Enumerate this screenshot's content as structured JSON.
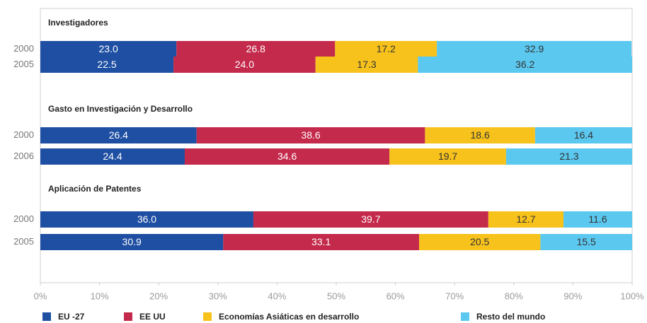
{
  "chart_data": {
    "type": "bar",
    "orientation": "horizontal",
    "stacked": true,
    "series": [
      {
        "name": "EU -27",
        "color": "#1f4fa3",
        "label_color": "#ffffff"
      },
      {
        "name": "EE UU",
        "color": "#c42a4b",
        "label_color": "#ffffff"
      },
      {
        "name": "Economías  Asiáticas en desarrollo",
        "color": "#f7c21c",
        "label_color": "#333333"
      },
      {
        "name": "Resto del mundo",
        "color": "#5bc8f0",
        "label_color": "#333333"
      }
    ],
    "groups": [
      {
        "title": "Investigadores",
        "categories": [
          "2000",
          "2005"
        ],
        "values": [
          [
            23.0,
            26.8,
            17.2,
            32.9
          ],
          [
            22.5,
            24.0,
            17.3,
            36.2
          ]
        ],
        "value_labels": [
          [
            "23.0",
            "26.8",
            "17.2",
            "32.9"
          ],
          [
            "22.5",
            "24.0",
            "17.3",
            "36.2"
          ]
        ]
      },
      {
        "title": "Gasto en Investigación y Desarrollo",
        "categories": [
          "2000",
          "2006"
        ],
        "values": [
          [
            26.4,
            38.6,
            18.6,
            16.4
          ],
          [
            24.4,
            34.6,
            19.7,
            21.3
          ]
        ],
        "value_labels": [
          [
            "26.4",
            "38.6",
            "18.6",
            "16.4"
          ],
          [
            "24.4",
            "34.6",
            "19.7",
            "21.3"
          ]
        ]
      },
      {
        "title": "Aplicación de Patentes",
        "categories": [
          "2000",
          "2005"
        ],
        "values": [
          [
            36.0,
            39.7,
            12.7,
            11.6
          ],
          [
            30.9,
            33.1,
            20.5,
            15.5
          ]
        ],
        "value_labels": [
          [
            "36.0",
            "39.7",
            "12.7",
            "11.6"
          ],
          [
            "30.9",
            "33.1",
            "20.5",
            "15.5"
          ]
        ]
      }
    ],
    "xlim": [
      0,
      100
    ],
    "xticks": [
      {
        "value": 0,
        "label": "0%"
      },
      {
        "value": 10,
        "label": "10%"
      },
      {
        "value": 20,
        "label": "20%"
      },
      {
        "value": 30,
        "label": "30%"
      },
      {
        "value": 40,
        "label": "40%"
      },
      {
        "value": 50,
        "label": "50%"
      },
      {
        "value": 60,
        "label": "60%"
      },
      {
        "value": 70,
        "label": "70%"
      },
      {
        "value": 80,
        "label": "80%"
      },
      {
        "value": 90,
        "label": "90%"
      },
      {
        "value": 100,
        "label": "100%"
      }
    ]
  }
}
